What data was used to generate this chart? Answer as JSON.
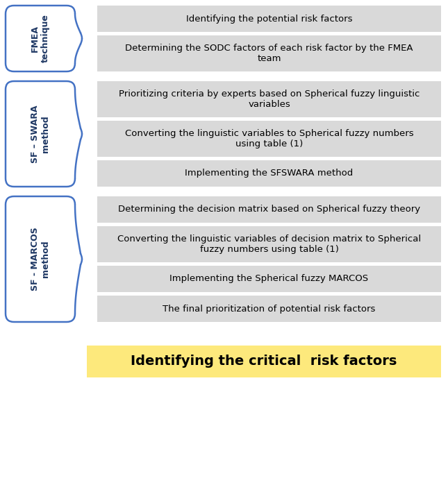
{
  "bg_color": "#ffffff",
  "label_box_bg": "#ffffff",
  "label_box_border": "#4472c4",
  "label_text_color": "#1f3864",
  "step_box_color": "#d9d9d9",
  "step_text_color": "#000000",
  "final_box_color": "#fde97c",
  "final_text_color": "#000000",
  "groups": [
    {
      "label": "FMEA\ntechnique",
      "steps": [
        "Identifying the potential risk factors",
        "Determining the SODC factors of each risk factor by the FMEA\nteam"
      ]
    },
    {
      "label": "SF – SWARA\nmethod",
      "steps": [
        "Prioritizing criteria by experts based on Spherical fuzzy linguistic\nvariables",
        "Converting the linguistic variables to Spherical fuzzy numbers\nusing table (1)",
        "Implementing the SFSWARA method"
      ]
    },
    {
      "label": "SF - MARCOS\nmethod",
      "steps": [
        "Determining the decision matrix based on Spherical fuzzy theory",
        "Converting the linguistic variables of decision matrix to Spherical\nfuzzy numbers using table (1)",
        "Implementing the Spherical fuzzy MARCOS",
        "The final prioritization of potential risk factors"
      ]
    }
  ],
  "final_label": "Identifying the critical  risk factors",
  "step_heights": [
    38,
    52,
    52,
    52,
    38,
    38,
    52,
    52,
    38,
    38
  ],
  "label_fontsize": 9,
  "step_fontsize": 9.5,
  "final_fontsize": 14
}
